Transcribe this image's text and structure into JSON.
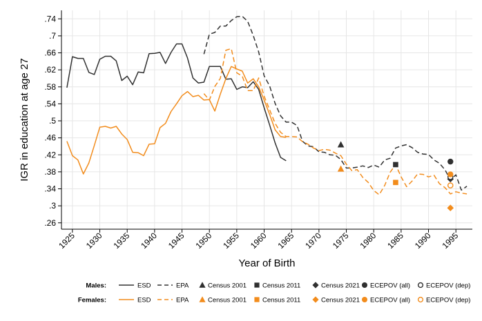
{
  "chart_data": {
    "type": "line",
    "xlabel": "Year of Birth",
    "ylabel": "IGR in education at age 27",
    "xlim": [
      1923,
      1998
    ],
    "ylim": [
      0.245,
      0.76
    ],
    "x_ticks": [
      1925,
      1930,
      1935,
      1940,
      1945,
      1950,
      1955,
      1960,
      1965,
      1970,
      1975,
      1980,
      1985,
      1990,
      1995
    ],
    "x_tick_labels": [
      "1925",
      "1930",
      "1935",
      "1940",
      "1945",
      "1950",
      "1955",
      "1960",
      "1965",
      "1970",
      "1975",
      "1980",
      "1985",
      "1990",
      "1995"
    ],
    "y_ticks": [
      0.26,
      0.3,
      0.34,
      0.38,
      0.42,
      0.46,
      0.5,
      0.54,
      0.58,
      0.62,
      0.66,
      0.7,
      0.74
    ],
    "y_tick_labels": [
      ".26",
      ".3",
      ".34",
      ".38",
      ".42",
      ".46",
      ".5",
      ".54",
      ".58",
      ".62",
      ".66",
      ".7",
      ".74"
    ],
    "colors": {
      "males": "#303030",
      "females": "#f28c1c",
      "grid": "#e6e6e6"
    },
    "grid": true,
    "legend_position": "bottom",
    "legend": {
      "groups": [
        {
          "label": "Males:",
          "color": "#303030"
        },
        {
          "label": "Females:",
          "color": "#f28c1c"
        }
      ],
      "entries": [
        {
          "label": "ESD",
          "marker": "line-solid"
        },
        {
          "label": "EPA",
          "marker": "line-dashed"
        },
        {
          "label": "Census 2001",
          "marker": "triangle"
        },
        {
          "label": "Census 2011",
          "marker": "square"
        },
        {
          "label": "Census 2021",
          "marker": "diamond"
        },
        {
          "label": "ECEPOV (all)",
          "marker": "circle"
        },
        {
          "label": "ECEPOV (dep)",
          "marker": "circle-open"
        }
      ]
    },
    "series": [
      {
        "name": "ESD",
        "group": "Males",
        "style": "solid",
        "x": [
          1924,
          1925,
          1926,
          1927,
          1928,
          1929,
          1930,
          1931,
          1932,
          1933,
          1934,
          1935,
          1936,
          1937,
          1938,
          1939,
          1940,
          1941,
          1942,
          1943,
          1944,
          1945,
          1946,
          1947,
          1948,
          1949,
          1950,
          1951,
          1952,
          1953,
          1954,
          1955,
          1956,
          1957,
          1958,
          1959,
          1960,
          1961,
          1962,
          1963,
          1964
        ],
        "y": [
          0.578,
          0.651,
          0.647,
          0.647,
          0.614,
          0.609,
          0.645,
          0.652,
          0.652,
          0.641,
          0.595,
          0.605,
          0.585,
          0.615,
          0.613,
          0.658,
          0.659,
          0.661,
          0.635,
          0.661,
          0.681,
          0.681,
          0.648,
          0.601,
          0.589,
          0.591,
          0.628,
          0.628,
          0.628,
          0.598,
          0.599,
          0.574,
          0.58,
          0.578,
          0.592,
          0.574,
          0.531,
          0.49,
          0.448,
          0.414,
          0.406
        ]
      },
      {
        "name": "EPA",
        "group": "Males",
        "style": "dashed",
        "x": [
          1949,
          1950,
          1951,
          1952,
          1953,
          1954,
          1955,
          1956,
          1957,
          1958,
          1959,
          1960,
          1961,
          1962,
          1963,
          1964,
          1965,
          1966,
          1967,
          1968,
          1969,
          1970,
          1971,
          1972,
          1973,
          1974,
          1975,
          1976,
          1977,
          1978,
          1979,
          1980,
          1981,
          1982,
          1983,
          1984,
          1985,
          1986,
          1987,
          1988,
          1989,
          1990,
          1991,
          1992,
          1993,
          1994,
          1995,
          1996,
          1997
        ],
        "y": [
          0.657,
          0.704,
          0.708,
          0.723,
          0.723,
          0.736,
          0.745,
          0.746,
          0.734,
          0.701,
          0.662,
          0.606,
          0.582,
          0.541,
          0.512,
          0.497,
          0.497,
          0.489,
          0.452,
          0.441,
          0.439,
          0.427,
          0.426,
          0.42,
          0.419,
          0.409,
          0.389,
          0.389,
          0.391,
          0.394,
          0.39,
          0.396,
          0.391,
          0.408,
          0.412,
          0.436,
          0.441,
          0.444,
          0.437,
          0.426,
          0.422,
          0.421,
          0.408,
          0.4,
          0.385,
          0.361,
          0.373,
          0.337,
          0.346
        ]
      },
      {
        "name": "ESD",
        "group": "Females",
        "style": "solid",
        "x": [
          1924,
          1925,
          1926,
          1927,
          1928,
          1929,
          1930,
          1931,
          1932,
          1933,
          1934,
          1935,
          1936,
          1937,
          1938,
          1939,
          1940,
          1941,
          1942,
          1943,
          1944,
          1945,
          1946,
          1947,
          1948,
          1949,
          1950,
          1951,
          1952,
          1953,
          1954,
          1955,
          1956,
          1957,
          1958,
          1959,
          1960,
          1961,
          1962,
          1963,
          1964
        ],
        "y": [
          0.452,
          0.418,
          0.408,
          0.375,
          0.401,
          0.442,
          0.485,
          0.487,
          0.483,
          0.487,
          0.469,
          0.456,
          0.426,
          0.425,
          0.418,
          0.445,
          0.446,
          0.484,
          0.494,
          0.522,
          0.54,
          0.559,
          0.569,
          0.557,
          0.56,
          0.549,
          0.55,
          0.523,
          0.563,
          0.599,
          0.628,
          0.622,
          0.617,
          0.589,
          0.599,
          0.58,
          0.549,
          0.515,
          0.479,
          0.463,
          0.461
        ]
      },
      {
        "name": "EPA",
        "group": "Females",
        "style": "dashed",
        "x": [
          1949,
          1950,
          1951,
          1952,
          1953,
          1954,
          1955,
          1956,
          1957,
          1958,
          1959,
          1960,
          1961,
          1962,
          1963,
          1964,
          1965,
          1966,
          1967,
          1968,
          1969,
          1970,
          1971,
          1972,
          1973,
          1974,
          1975,
          1976,
          1977,
          1978,
          1979,
          1980,
          1981,
          1982,
          1983,
          1984,
          1985,
          1986,
          1987,
          1988,
          1989,
          1990,
          1991,
          1992,
          1993,
          1994,
          1995,
          1996,
          1997
        ],
        "y": [
          0.564,
          0.549,
          0.581,
          0.6,
          0.666,
          0.67,
          0.613,
          0.605,
          0.571,
          0.571,
          0.601,
          0.558,
          0.526,
          0.494,
          0.473,
          0.463,
          0.463,
          0.462,
          0.451,
          0.445,
          0.436,
          0.43,
          0.433,
          0.431,
          0.424,
          0.418,
          0.398,
          0.383,
          0.385,
          0.367,
          0.355,
          0.336,
          0.326,
          0.348,
          0.379,
          0.397,
          0.368,
          0.345,
          0.358,
          0.375,
          0.374,
          0.368,
          0.372,
          0.352,
          0.343,
          0.328,
          0.333,
          0.33,
          0.328
        ]
      }
    ],
    "points": [
      {
        "name": "Census 2001",
        "group": "Males",
        "marker": "triangle",
        "x": 1974,
        "y": 0.444
      },
      {
        "name": "Census 2011",
        "group": "Males",
        "marker": "square",
        "x": 1984,
        "y": 0.397
      },
      {
        "name": "Census 2021",
        "group": "Males",
        "marker": "diamond",
        "x": 1994,
        "y": 0.363
      },
      {
        "name": "ECEPOV (all)",
        "group": "Males",
        "marker": "circle",
        "x": 1994,
        "y": 0.404
      },
      {
        "name": "ECEPOV (dep)",
        "group": "Males",
        "marker": "circle-open",
        "x": 1994,
        "y": 0.368
      },
      {
        "name": "Census 2001",
        "group": "Females",
        "marker": "triangle",
        "x": 1974,
        "y": 0.387
      },
      {
        "name": "Census 2011",
        "group": "Females",
        "marker": "square",
        "x": 1984,
        "y": 0.355
      },
      {
        "name": "Census 2021",
        "group": "Females",
        "marker": "diamond",
        "x": 1994,
        "y": 0.295
      },
      {
        "name": "ECEPOV (all)",
        "group": "Females",
        "marker": "circle",
        "x": 1994,
        "y": 0.374
      },
      {
        "name": "ECEPOV (dep)",
        "group": "Females",
        "marker": "circle-open",
        "x": 1994,
        "y": 0.348
      }
    ]
  }
}
